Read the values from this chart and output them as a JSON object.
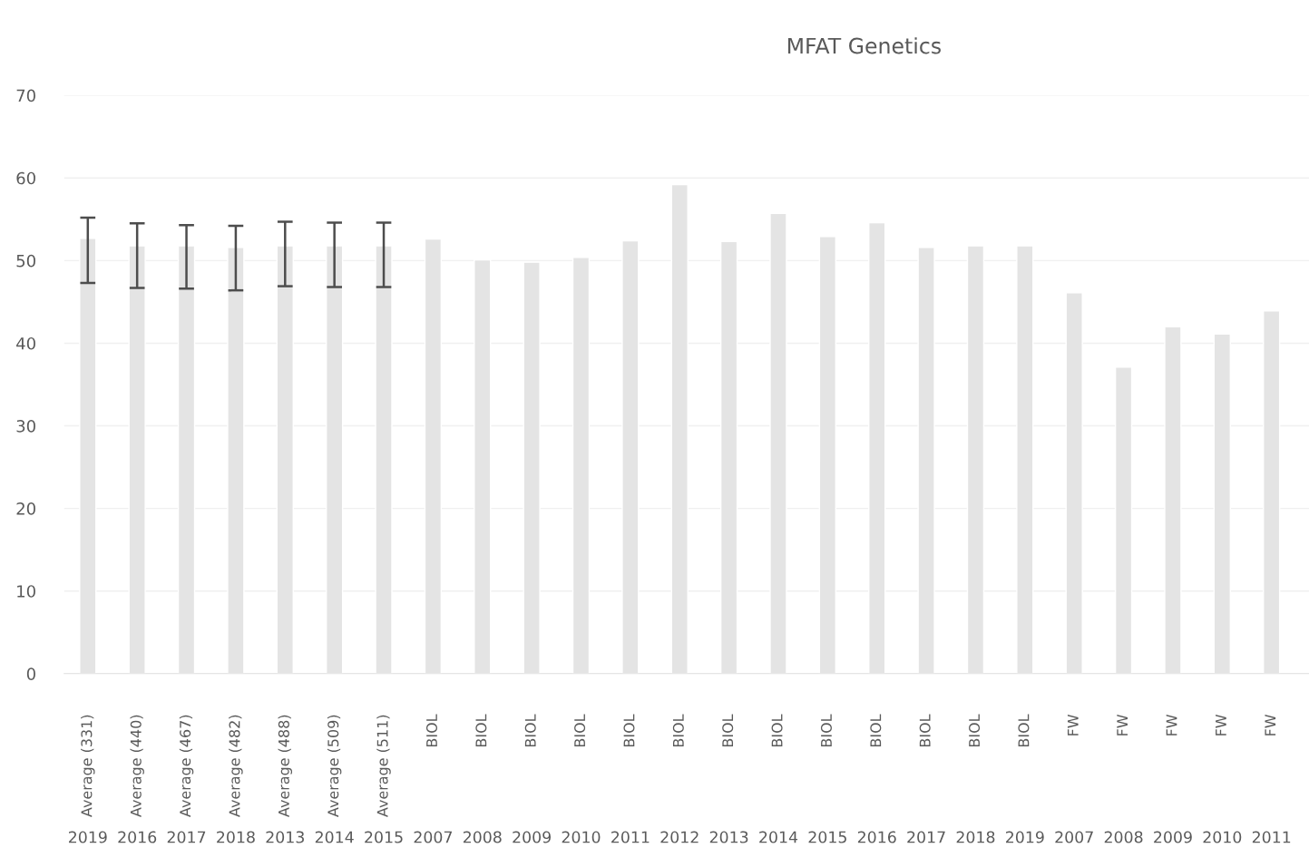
{
  "chart_data": {
    "type": "bar",
    "title": "MFAT Genetics",
    "categories": [
      "Average (331)\n2019",
      "Average (440)\n2016",
      "Average (467)\n2017",
      "Average (482)\n2018",
      "Average (488)\n2013",
      "Average (509)\n2014",
      "Average (511)\n2015",
      "BIOL\n2007",
      "BIOL\n2008",
      "BIOL\n2009",
      "BIOL\n2010",
      "BIOL\n2011",
      "BIOL\n2012",
      "BIOL\n2013",
      "BIOL\n2014",
      "BIOL\n2015",
      "BIOL\n2016",
      "BIOL\n2017",
      "BIOL\n2018",
      "BIOL\n2019",
      "FW\n2007",
      "FW\n2008",
      "FW\n2009",
      "FW\n2010",
      "FW\n2011"
    ],
    "values": [
      52.7,
      51.8,
      51.8,
      51.6,
      51.8,
      51.8,
      51.8,
      52.6,
      50.1,
      49.8,
      50.4,
      52.4,
      59.2,
      52.3,
      55.7,
      52.9,
      54.6,
      51.6,
      51.8,
      51.8,
      46.1,
      37.1,
      42.0,
      41.1,
      43.9
    ],
    "errors": [
      [
        47.3,
        55.2
      ],
      [
        46.7,
        54.5
      ],
      [
        46.6,
        54.3
      ],
      [
        46.4,
        54.2
      ],
      [
        46.9,
        54.7
      ],
      [
        46.8,
        54.6
      ],
      [
        46.8,
        54.6
      ],
      null,
      null,
      null,
      null,
      null,
      null,
      null,
      null,
      null,
      null,
      null,
      null,
      null,
      null,
      null,
      null,
      null,
      null
    ],
    "color": "#e4e4e4",
    "ylim": [
      0,
      70
    ],
    "yticks": [
      0,
      10,
      20,
      30,
      40,
      50,
      60,
      70
    ],
    "grid": "y"
  }
}
